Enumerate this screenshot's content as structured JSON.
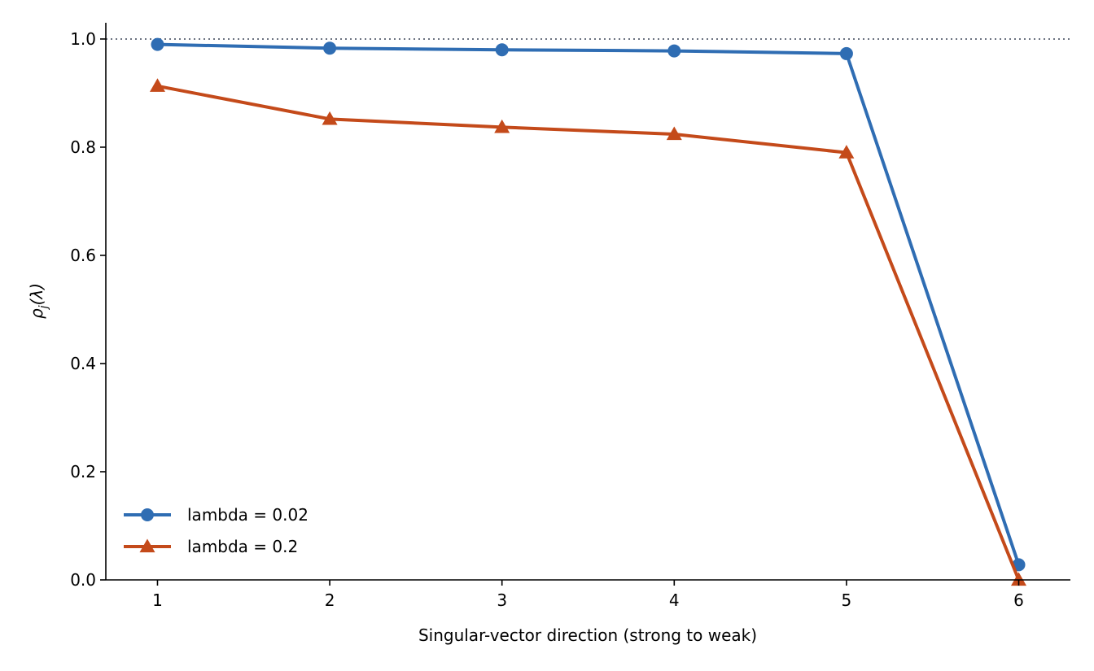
{
  "chart_data": {
    "type": "line",
    "x": [
      1,
      2,
      3,
      4,
      5,
      6
    ],
    "xlabel": "Singular-vector direction (strong to weak)",
    "ylabel": "ρj(λ)",
    "ylabel_main": "ρ",
    "ylabel_sub": "j",
    "ylabel_rest": "(λ)",
    "xlim": [
      0.7,
      6.3
    ],
    "ylim": [
      0.0,
      1.03
    ],
    "xticks": [
      1,
      2,
      3,
      4,
      5,
      6
    ],
    "yticks": [
      0.0,
      0.2,
      0.4,
      0.6,
      0.8,
      1.0
    ],
    "ytick_labels": [
      "0.0",
      "0.2",
      "0.4",
      "0.6",
      "0.8",
      "1.0"
    ],
    "reference_line": {
      "y": 1.0,
      "style": "dotted",
      "color": "#6b7280"
    },
    "grid": false,
    "legend_position": "lower-left",
    "series": [
      {
        "name": "lambda = 0.02",
        "values": [
          0.99,
          0.983,
          0.98,
          0.978,
          0.973,
          0.028
        ],
        "color": "#2f6db3",
        "marker": "circle"
      },
      {
        "name": "lambda = 0.2",
        "values": [
          0.913,
          0.852,
          0.837,
          0.824,
          0.79,
          0.0
        ],
        "color": "#c44a1a",
        "marker": "triangle"
      }
    ]
  }
}
